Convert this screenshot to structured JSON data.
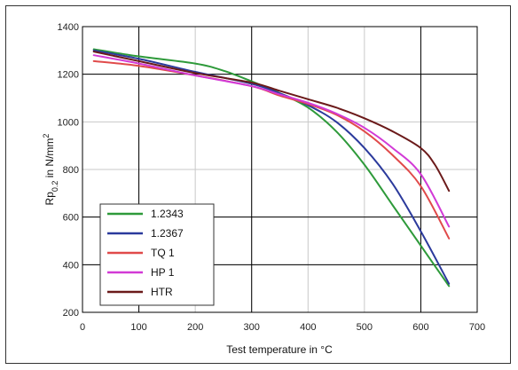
{
  "chart_data": {
    "type": "line",
    "title": "",
    "xlabel": "Test temperature in °C",
    "ylabel": "Rp0.2 in N/mm²",
    "ylabel_parts": {
      "main": "Rp",
      "sub": "0.2",
      "rest": " in N/mm",
      "sup": "2"
    },
    "xlim": [
      0,
      700
    ],
    "ylim": [
      200,
      1400
    ],
    "xticks": [
      0,
      100,
      200,
      300,
      400,
      500,
      600,
      700
    ],
    "yticks": [
      200,
      400,
      600,
      800,
      1000,
      1200,
      1400
    ],
    "major_grid_x": [
      100,
      300,
      600
    ],
    "major_grid_y": [
      1200,
      600,
      400
    ],
    "minor_grid": true,
    "legend_position": "bottom-left",
    "series": [
      {
        "name": "1.2343",
        "color": "#2e9a3a",
        "x": [
          20,
          100,
          200,
          250,
          300,
          350,
          400,
          450,
          500,
          550,
          600,
          650
        ],
        "y": [
          1305,
          1275,
          1245,
          1215,
          1170,
          1120,
          1060,
          960,
          820,
          650,
          480,
          310
        ]
      },
      {
        "name": "1.2367",
        "color": "#2b3a9c",
        "x": [
          20,
          100,
          200,
          300,
          350,
          400,
          450,
          500,
          550,
          600,
          650
        ],
        "y": [
          1300,
          1265,
          1210,
          1160,
          1120,
          1070,
          1000,
          890,
          740,
          540,
          320
        ]
      },
      {
        "name": "TQ 1",
        "color": "#e04a4a",
        "x": [
          20,
          100,
          200,
          300,
          350,
          400,
          450,
          500,
          550,
          600,
          650
        ],
        "y": [
          1255,
          1235,
          1195,
          1150,
          1110,
          1075,
          1030,
          960,
          860,
          730,
          510
        ]
      },
      {
        "name": "HP 1",
        "color": "#d23ad6",
        "x": [
          20,
          100,
          200,
          300,
          350,
          400,
          450,
          500,
          550,
          600,
          650
        ],
        "y": [
          1280,
          1245,
          1195,
          1150,
          1115,
          1080,
          1035,
          975,
          890,
          780,
          560
        ]
      },
      {
        "name": "HTR",
        "color": "#6b1a1a",
        "x": [
          20,
          100,
          200,
          300,
          350,
          400,
          450,
          500,
          550,
          600,
          625,
          650
        ],
        "y": [
          1295,
          1255,
          1205,
          1165,
          1130,
          1095,
          1060,
          1015,
          960,
          890,
          820,
          710
        ]
      }
    ]
  }
}
